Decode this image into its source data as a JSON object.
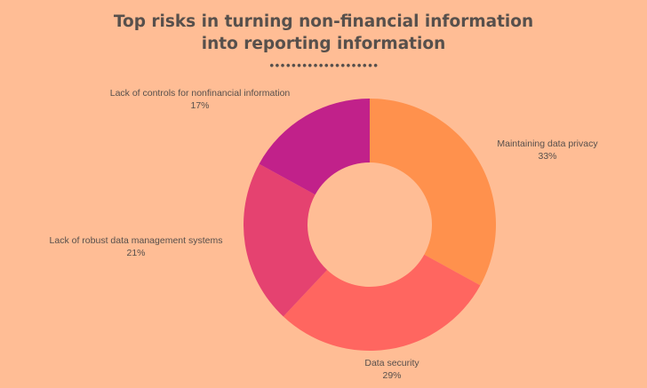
{
  "header": {
    "title_line1": "Top risks in turning non-financial information",
    "title_line2": "into reporting information",
    "divider": "••••••••••••••••••••"
  },
  "chart_data": {
    "type": "pie",
    "variant": "donut",
    "title": "Top risks in turning non-financial information into reporting information",
    "legend": "none",
    "slices": [
      {
        "label": "Maintaining data privacy",
        "value": 33,
        "display": "33%",
        "color": "#ff914d"
      },
      {
        "label": "Data security",
        "value": 29,
        "display": "29%",
        "color": "#ff6660"
      },
      {
        "label": "Lack of robust data management systems",
        "value": 21,
        "display": "21%",
        "color": "#e54270"
      },
      {
        "label": "Lack of controls for nonfinancial information",
        "value": 17,
        "display": "17%",
        "color": "#c1218a"
      }
    ]
  }
}
